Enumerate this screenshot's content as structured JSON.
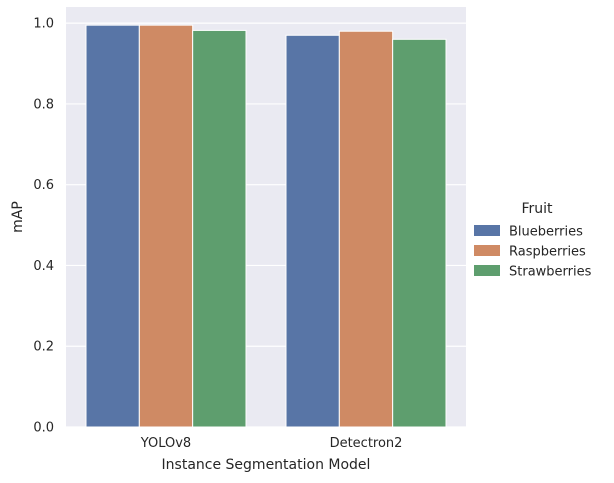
{
  "chart_data": {
    "type": "bar",
    "title": "",
    "xlabel": "Instance Segmentation Model",
    "ylabel": "mAP",
    "categories": [
      "YOLOv8",
      "Detectron2"
    ],
    "series": [
      {
        "name": "Blueberries",
        "values": [
          0.995,
          0.97
        ],
        "color": "#5875a6"
      },
      {
        "name": "Raspberries",
        "values": [
          0.995,
          0.98
        ],
        "color": "#cf8a64"
      },
      {
        "name": "Strawberries",
        "values": [
          0.982,
          0.96
        ],
        "color": "#5e9e6e"
      }
    ],
    "ylim": [
      0,
      1.04
    ],
    "yticks": [
      "0.0",
      "0.2",
      "0.4",
      "0.6",
      "0.8",
      "1.0"
    ],
    "grid": true,
    "legend": {
      "title": "Fruit",
      "placement": "right"
    },
    "background_color": "#eaeaf2",
    "grid_color": "#ffffff"
  }
}
